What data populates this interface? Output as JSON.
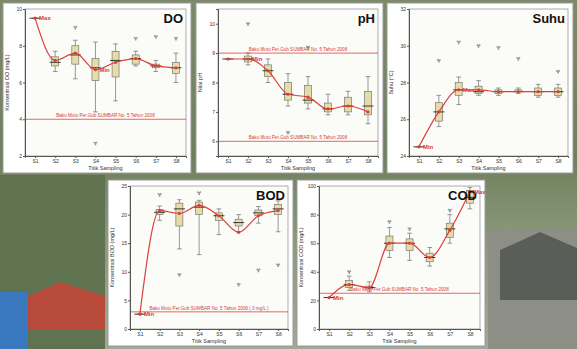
{
  "chart_data": [
    {
      "type": "box",
      "title": "DO",
      "x_label": "Titik Sampling",
      "y_label": "Konsentrasi DO (mg/L)",
      "categories": [
        "S1",
        "S2",
        "S3",
        "S4",
        "S5",
        "S6",
        "S7",
        "S8"
      ],
      "ylim": [
        2,
        10
      ],
      "yticks": [
        2,
        4,
        6,
        8,
        10
      ],
      "grid": false,
      "color": "#d9403a",
      "marker": "circle",
      "whisker_low": [
        9.5,
        6.6,
        6.2,
        4.4,
        5.0,
        6.9,
        6.6,
        6.0
      ],
      "q1": [
        9.5,
        6.9,
        7.0,
        6.1,
        6.3,
        7.0,
        6.8,
        6.5
      ],
      "median": [
        9.5,
        7.1,
        7.5,
        6.8,
        7.2,
        7.3,
        6.9,
        6.8
      ],
      "q3": [
        9.5,
        7.4,
        8.0,
        7.3,
        7.7,
        7.5,
        7.0,
        7.1
      ],
      "whisker_high": [
        9.5,
        7.7,
        8.3,
        8.2,
        8.1,
        7.7,
        7.2,
        7.6
      ],
      "mean": [
        9.5,
        7.2,
        7.6,
        6.7,
        7.1,
        7.3,
        6.9,
        6.8
      ],
      "outliers": [
        {
          "index": 2,
          "value": 9.0
        },
        {
          "index": 5,
          "value": 8.4
        },
        {
          "index": 6,
          "value": 8.5
        },
        {
          "index": 7,
          "value": 8.4
        },
        {
          "index": 3,
          "value": 2.7
        }
      ],
      "annotations": [
        {
          "text": "Max",
          "index": 0
        },
        {
          "text": "Min",
          "index": 3
        }
      ],
      "reference_lines": [
        {
          "value": 4,
          "label": "Baku Mutu Per.Gub SUMBAR No. 5 Tahun 2008"
        }
      ]
    },
    {
      "type": "box",
      "title": "pH",
      "x_label": "Titik Sampling",
      "y_label": "Nilai pH",
      "categories": [
        "S1",
        "S2",
        "S3",
        "S4",
        "S5",
        "S6",
        "S7",
        "S8"
      ],
      "ylim": [
        5.5,
        10.5
      ],
      "yticks": [
        6,
        7,
        8,
        9,
        10
      ],
      "grid": false,
      "color": "#d9403a",
      "marker": "circle",
      "whisker_low": [
        8.8,
        8.6,
        8.0,
        7.2,
        7.1,
        6.9,
        6.9,
        6.6
      ],
      "q1": [
        8.8,
        8.7,
        8.2,
        7.4,
        7.3,
        7.0,
        7.0,
        6.9
      ],
      "median": [
        8.8,
        8.8,
        8.4,
        7.6,
        7.4,
        7.1,
        7.2,
        7.2
      ],
      "q3": [
        8.8,
        8.9,
        8.6,
        8.0,
        7.9,
        7.3,
        7.5,
        7.7
      ],
      "whisker_high": [
        8.8,
        9.0,
        8.8,
        8.3,
        8.2,
        7.6,
        7.7,
        8.2
      ],
      "mean": [
        8.8,
        8.8,
        8.4,
        7.6,
        7.5,
        7.1,
        7.2,
        7.0
      ],
      "outliers": [
        {
          "index": 1,
          "value": 10.0
        },
        {
          "index": 4,
          "value": 9.2
        },
        {
          "index": 3,
          "value": 6.3
        }
      ],
      "annotations": [
        {
          "text": "Min",
          "index": 1
        }
      ],
      "reference_lines": [
        {
          "value": 9,
          "label": "Baku Mutu Per.Gub SUMBAR No. 5 Tahun 2008"
        },
        {
          "value": 6,
          "label": "Baku Mutu Per.Gub SUMBAR No. 5 Tahun 2008"
        }
      ]
    },
    {
      "type": "box",
      "title": "Suhu",
      "x_label": "Titik Sampling",
      "y_label": "Suhu (°C)",
      "categories": [
        "S1",
        "S2",
        "S3",
        "S4",
        "S5",
        "S6",
        "S7",
        "S8"
      ],
      "ylim": [
        24,
        32
      ],
      "yticks": [
        24,
        26,
        28,
        30,
        32
      ],
      "grid": false,
      "color": "#d9403a",
      "marker": "circle",
      "whisker_low": [
        24.5,
        25.6,
        26.8,
        27.3,
        27.3,
        27.4,
        27.2,
        27.2
      ],
      "q1": [
        24.5,
        25.9,
        27.3,
        27.4,
        27.4,
        27.5,
        27.3,
        27.3
      ],
      "median": [
        24.5,
        26.4,
        27.6,
        27.5,
        27.5,
        27.5,
        27.5,
        27.5
      ],
      "q3": [
        24.5,
        26.9,
        28.0,
        27.8,
        27.6,
        27.6,
        27.7,
        27.7
      ],
      "whisker_high": [
        24.5,
        27.3,
        28.3,
        28.1,
        27.7,
        27.7,
        27.9,
        27.9
      ],
      "mean": [
        24.5,
        26.4,
        27.6,
        27.6,
        27.5,
        27.5,
        27.5,
        27.5
      ],
      "outliers": [
        {
          "index": 1,
          "value": 29.2
        },
        {
          "index": 2,
          "value": 30.2
        },
        {
          "index": 3,
          "value": 30.0
        },
        {
          "index": 4,
          "value": 29.9
        },
        {
          "index": 5,
          "value": 29.3
        },
        {
          "index": 7,
          "value": 28.6
        }
      ],
      "annotations": [
        {
          "text": "Min",
          "index": 0
        },
        {
          "text": "Max",
          "index": 2
        }
      ],
      "reference_lines": []
    },
    {
      "type": "box",
      "title": "BOD",
      "x_label": "Titik Sampling",
      "y_label": "Konsentrasi BOD (mg/L)",
      "categories": [
        "S1",
        "S2",
        "S3",
        "S4",
        "S5",
        "S6",
        "S7",
        "S8"
      ],
      "ylim": [
        0,
        25
      ],
      "yticks": [
        0,
        5,
        10,
        15,
        20,
        25
      ],
      "grid": false,
      "color": "#d9403a",
      "marker": "circle",
      "whisker_low": [
        2.6,
        19.0,
        14.0,
        13.0,
        16.5,
        17.0,
        18.5,
        17.0
      ],
      "q1": [
        2.6,
        20.0,
        18.0,
        20.0,
        19.0,
        18.0,
        19.8,
        20.0
      ],
      "median": [
        2.6,
        20.4,
        21.0,
        21.3,
        19.8,
        18.6,
        20.3,
        21.0
      ],
      "q3": [
        2.6,
        20.9,
        22.0,
        22.2,
        20.3,
        19.2,
        20.8,
        21.8
      ],
      "whisker_high": [
        2.6,
        21.5,
        22.6,
        22.5,
        21.0,
        20.0,
        21.4,
        22.4
      ],
      "mean": [
        2.6,
        20.7,
        20.2,
        21.6,
        19.8,
        16.9,
        19.8,
        20.7
      ],
      "outliers": [
        {
          "index": 1,
          "value": 23.5
        },
        {
          "index": 3,
          "value": 23.8
        },
        {
          "index": 2,
          "value": 9.5
        },
        {
          "index": 5,
          "value": 7.8
        },
        {
          "index": 6,
          "value": 10.3
        },
        {
          "index": 7,
          "value": 11.2
        }
      ],
      "annotations": [
        {
          "text": "Min",
          "index": 0
        }
      ],
      "reference_lines": [
        {
          "value": 3,
          "label": "Baku Mutu Per.Gub SUMBAR No. 5 Tahun 2008 ( 3 mg/L )"
        }
      ]
    },
    {
      "type": "box",
      "title": "COD",
      "x_label": "Titik Sampling",
      "y_label": "Konsentrasi COD (mg/L)",
      "categories": [
        "S1",
        "S2",
        "S3",
        "S4",
        "S5",
        "S6",
        "S7",
        "S8"
      ],
      "ylim": [
        0,
        100
      ],
      "yticks": [
        0,
        20,
        40,
        60,
        80,
        100
      ],
      "grid": false,
      "color": "#d9403a",
      "marker": "circle",
      "whisker_low": [
        22,
        27,
        26,
        50,
        48,
        44,
        60,
        84
      ],
      "q1": [
        22,
        29,
        28,
        55,
        55,
        47,
        64,
        88
      ],
      "median": [
        22,
        31,
        29,
        60,
        60,
        50,
        70,
        92
      ],
      "q3": [
        22,
        34,
        30,
        65,
        63,
        53,
        74,
        97
      ],
      "whisker_high": [
        22,
        37,
        33,
        71,
        67,
        57,
        80,
        99
      ],
      "mean": [
        22,
        31,
        29,
        60,
        60,
        50,
        69,
        96
      ],
      "outliers": [
        {
          "index": 1,
          "value": 40
        },
        {
          "index": 3,
          "value": 75
        },
        {
          "index": 4,
          "value": 70
        },
        {
          "index": 6,
          "value": 83
        }
      ],
      "annotations": [
        {
          "text": "Min",
          "index": 0
        },
        {
          "text": "Max",
          "index": 7
        }
      ],
      "reference_lines": [
        {
          "value": 25,
          "label": "Baku Mutu Per.Gub SUMBAR No. 5 Tahun 2008"
        }
      ]
    }
  ]
}
